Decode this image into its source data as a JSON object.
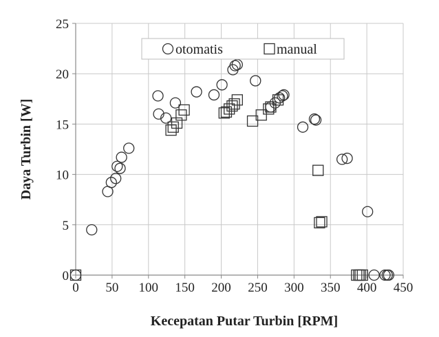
{
  "chart_data": {
    "type": "scatter",
    "xlabel": "Kecepatan Putar Turbin [RPM]",
    "ylabel": "Daya Turbin [W]",
    "xlim": [
      0,
      450
    ],
    "ylim": [
      0,
      25
    ],
    "xticks": [
      0,
      50,
      100,
      150,
      200,
      250,
      300,
      350,
      400,
      450
    ],
    "yticks": [
      0,
      5,
      10,
      15,
      20,
      25
    ],
    "grid": true,
    "legend_position": "top",
    "colors": {
      "marker": "#333333",
      "grid": "#c8c8c8",
      "axis": "#888888"
    },
    "series": [
      {
        "name": "otomatis",
        "marker": "circle",
        "points": [
          [
            0,
            0
          ],
          [
            22,
            4.5
          ],
          [
            44,
            8.3
          ],
          [
            49,
            9.2
          ],
          [
            55,
            9.6
          ],
          [
            57,
            10.8
          ],
          [
            61,
            10.6
          ],
          [
            63,
            11.7
          ],
          [
            73,
            12.6
          ],
          [
            113,
            17.8
          ],
          [
            114,
            16.0
          ],
          [
            124,
            15.6
          ],
          [
            137,
            17.1
          ],
          [
            166,
            18.2
          ],
          [
            190,
            17.9
          ],
          [
            201,
            18.9
          ],
          [
            216,
            20.4
          ],
          [
            219,
            20.8
          ],
          [
            222,
            20.9
          ],
          [
            247,
            19.3
          ],
          [
            268,
            16.7
          ],
          [
            274,
            17.1
          ],
          [
            280,
            17.6
          ],
          [
            284,
            17.8
          ],
          [
            286,
            17.9
          ],
          [
            312,
            14.7
          ],
          [
            328,
            15.5
          ],
          [
            330,
            15.4
          ],
          [
            366,
            11.5
          ],
          [
            373,
            11.6
          ],
          [
            401,
            6.3
          ],
          [
            410,
            0
          ],
          [
            425,
            0
          ],
          [
            428,
            0
          ],
          [
            430,
            0
          ]
        ]
      },
      {
        "name": "manual",
        "marker": "square",
        "points": [
          [
            0,
            0
          ],
          [
            131,
            14.4
          ],
          [
            134,
            14.7
          ],
          [
            139,
            15.1
          ],
          [
            145,
            15.9
          ],
          [
            149,
            16.4
          ],
          [
            204,
            16.1
          ],
          [
            207,
            16.2
          ],
          [
            211,
            16.5
          ],
          [
            215,
            16.8
          ],
          [
            218,
            17.0
          ],
          [
            222,
            17.4
          ],
          [
            243,
            15.3
          ],
          [
            255,
            15.9
          ],
          [
            265,
            16.5
          ],
          [
            268,
            16.7
          ],
          [
            278,
            17.4
          ],
          [
            333,
            10.4
          ],
          [
            335,
            5.2
          ],
          [
            338,
            5.3
          ],
          [
            386,
            0
          ],
          [
            389,
            0
          ],
          [
            391,
            0
          ],
          [
            394,
            0
          ]
        ]
      }
    ]
  }
}
